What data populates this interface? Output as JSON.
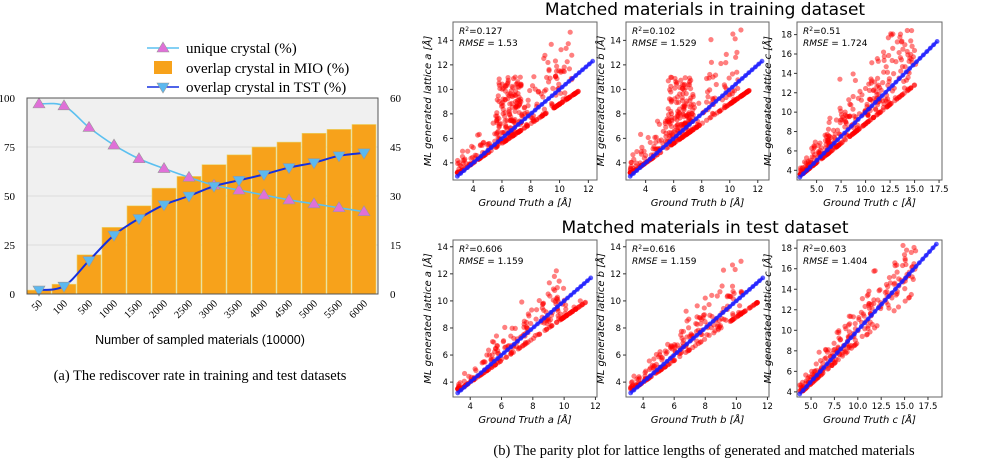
{
  "chart_data": [
    {
      "type": "bar+line",
      "panel": "a",
      "caption": "(a) The rediscover rate in training and test datasets",
      "xlabel": "Number of sampled materials (10000)",
      "categories": [
        "50",
        "100",
        "500",
        "1000",
        "1500",
        "2000",
        "2500",
        "3000",
        "3500",
        "4000",
        "4500",
        "5000",
        "5500",
        "6000"
      ],
      "y_left": {
        "range": [
          0,
          100
        ],
        "ticks": [
          "0",
          "25",
          "50",
          "75",
          "100"
        ]
      },
      "y_right": {
        "range": [
          0,
          60
        ],
        "ticks": [
          "0",
          "15",
          "30",
          "45",
          "60"
        ]
      },
      "grid": true,
      "legend_placement": "top",
      "series": [
        {
          "name": "unique crystal (%)",
          "type": "line",
          "axis": "left",
          "color": "#5bc0f0",
          "marker_color": "#e070d8",
          "marker": "triangle-up",
          "values": [
            97,
            96,
            85,
            76,
            69,
            64,
            59.5,
            55.5,
            53,
            50.5,
            48,
            46,
            44,
            42
          ]
        },
        {
          "name": "overlap crystal in MIO (%)",
          "type": "bar",
          "axis": "right",
          "color": "#f7a21b",
          "values": [
            1.2,
            3,
            12,
            20.4,
            27,
            32.4,
            36,
            39.6,
            42.6,
            45,
            46.5,
            49.2,
            50.4,
            51.9
          ]
        },
        {
          "name": "overlap crystal in TST (%)",
          "type": "line",
          "axis": "right",
          "color": "#1530e0",
          "marker_color": "#5bb8f0",
          "marker": "triangle-down",
          "values": [
            1.2,
            2.4,
            10.2,
            18,
            23.1,
            27.3,
            30,
            33,
            34.8,
            36.6,
            38.7,
            40.2,
            42.3,
            43.2
          ]
        }
      ]
    },
    {
      "type": "scatter",
      "panel": "b",
      "caption": "(b) The parity plot for lattice lengths of generated and matched materials",
      "groups": [
        {
          "title": "Matched materials in training dataset",
          "plots": [
            {
              "xlabel": "Ground Truth a [Å]",
              "ylabel": "ML generated lattice a [Å]",
              "r2": "0.127",
              "rmse": "1.53",
              "xlim": [
                2.6,
                12.6
              ],
              "ylim": [
                2.6,
                15.5
              ],
              "xticks": [
                "4",
                "6",
                "8",
                "10",
                "12"
              ],
              "yticks": [
                "4",
                "6",
                "8",
                "10",
                "12",
                "14"
              ]
            },
            {
              "xlabel": "Ground Truth b [Å]",
              "ylabel": "ML generated lattice b [Å]",
              "r2": "0.102",
              "rmse": "1.529",
              "xlim": [
                2.6,
                12.8
              ],
              "ylim": [
                2.6,
                15.5
              ],
              "xticks": [
                "4",
                "6",
                "8",
                "10",
                "12"
              ],
              "yticks": [
                "4",
                "6",
                "8",
                "10",
                "12",
                "14"
              ]
            },
            {
              "xlabel": "Ground Truth c [Å]",
              "ylabel": "ML generated lattice c [Å]",
              "r2": "0.51",
              "rmse": "1.724",
              "xlim": [
                3,
                17.8
              ],
              "ylim": [
                3,
                19.3
              ],
              "xticks": [
                "5.0",
                "7.5",
                "10.0",
                "12.5",
                "15.0",
                "17.5"
              ],
              "yticks": [
                "4",
                "6",
                "8",
                "10",
                "12",
                "14",
                "16",
                "18"
              ]
            }
          ]
        },
        {
          "title": "Matched materials in test dataset",
          "plots": [
            {
              "xlabel": "Ground Truth a [Å]",
              "ylabel": "ML generated lattice a [Å]",
              "r2": "0.606",
              "rmse": "1.159",
              "xlim": [
                2.9,
                12.1
              ],
              "ylim": [
                2.9,
                14.5
              ],
              "xticks": [
                "4",
                "6",
                "8",
                "10",
                "12"
              ],
              "yticks": [
                "4",
                "6",
                "8",
                "10",
                "12",
                "14"
              ]
            },
            {
              "xlabel": "Ground Truth b [Å]",
              "ylabel": "ML generated lattice b [Å]",
              "r2": "0.616",
              "rmse": "1.159",
              "xlim": [
                2.9,
                12.1
              ],
              "ylim": [
                2.9,
                14.5
              ],
              "xticks": [
                "4",
                "6",
                "8",
                "10",
                "12"
              ],
              "yticks": [
                "4",
                "6",
                "8",
                "10",
                "12",
                "14"
              ]
            },
            {
              "xlabel": "Ground Truth c [Å]",
              "ylabel": "ML generated lattice c [Å]",
              "r2": "0.603",
              "rmse": "1.404",
              "xlim": [
                3.5,
                19
              ],
              "ylim": [
                3.5,
                18.8
              ],
              "xticks": [
                "5.0",
                "7.5",
                "10.0",
                "12.5",
                "15.0",
                "17.5"
              ],
              "yticks": [
                "4",
                "6",
                "8",
                "10",
                "12",
                "14",
                "16",
                "18"
              ]
            }
          ]
        }
      ],
      "colors": {
        "generated": "#ff0000",
        "ground_truth": "#1a1aff"
      }
    }
  ]
}
